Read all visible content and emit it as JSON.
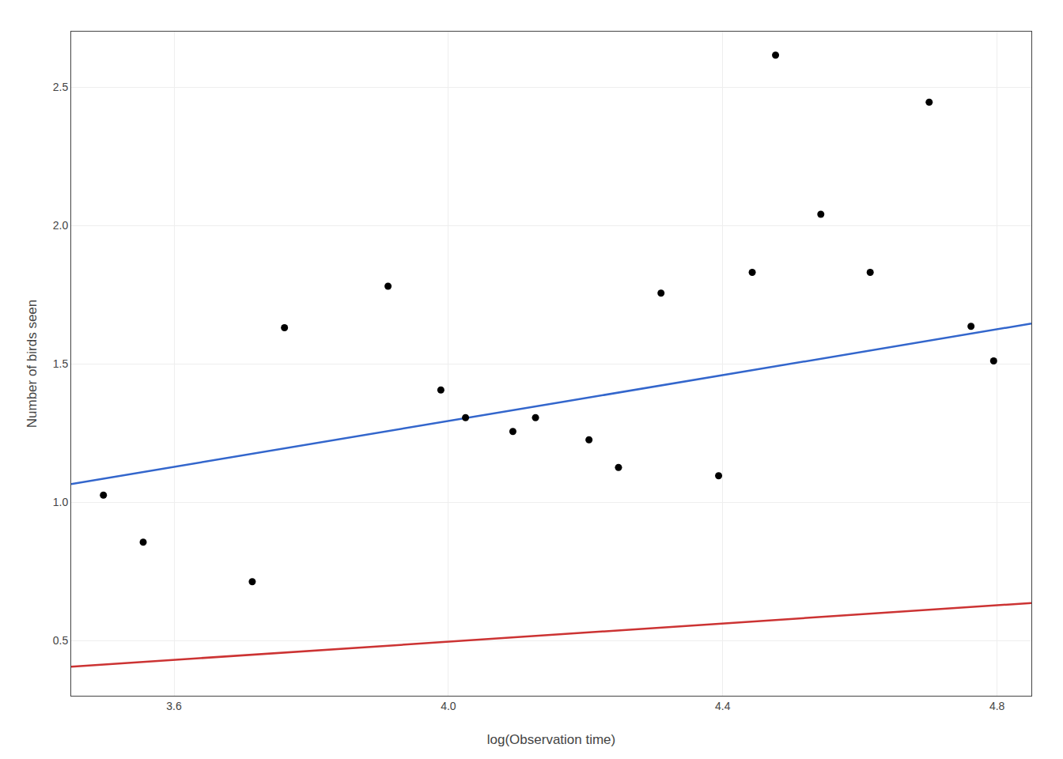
{
  "chart_data": {
    "type": "scatter",
    "xlabel": "log(Observation time)",
    "ylabel": "Number of birds seen",
    "series": [
      {
        "type": "line",
        "color": "#3366CC",
        "x": [
          3.45,
          4.85
        ],
        "values": [
          1.065,
          1.645
        ]
      },
      {
        "type": "line",
        "color": "#CC3333",
        "x": [
          3.45,
          4.85
        ],
        "values": [
          0.405,
          0.635
        ]
      },
      {
        "type": "scatter",
        "color": "#000000",
        "x": [
          3.497,
          3.555,
          3.714,
          3.761,
          3.912,
          3.989,
          4.025,
          4.094,
          4.127,
          4.205,
          4.248,
          4.31,
          4.394,
          4.443,
          4.477,
          4.543,
          4.615,
          4.701,
          4.762,
          4.795
        ],
        "values": [
          1.025,
          0.855,
          0.712,
          1.63,
          1.78,
          1.405,
          1.305,
          1.255,
          1.305,
          1.225,
          1.125,
          1.755,
          1.095,
          1.83,
          2.615,
          2.04,
          1.83,
          2.445,
          1.635,
          1.51
        ]
      }
    ],
    "xlim": [
      3.45,
      4.85
    ],
    "ylim": [
      0.3,
      2.7
    ],
    "xticks": [
      3.6,
      {
        "value": 4.0,
        "label": "4.0"
      },
      4.4,
      4.8
    ],
    "yticks": [
      0.5,
      {
        "value": 1.0,
        "label": "1.0"
      },
      1.5,
      {
        "value": 2.0,
        "label": "2.0"
      },
      2.5
    ],
    "grid": true
  }
}
